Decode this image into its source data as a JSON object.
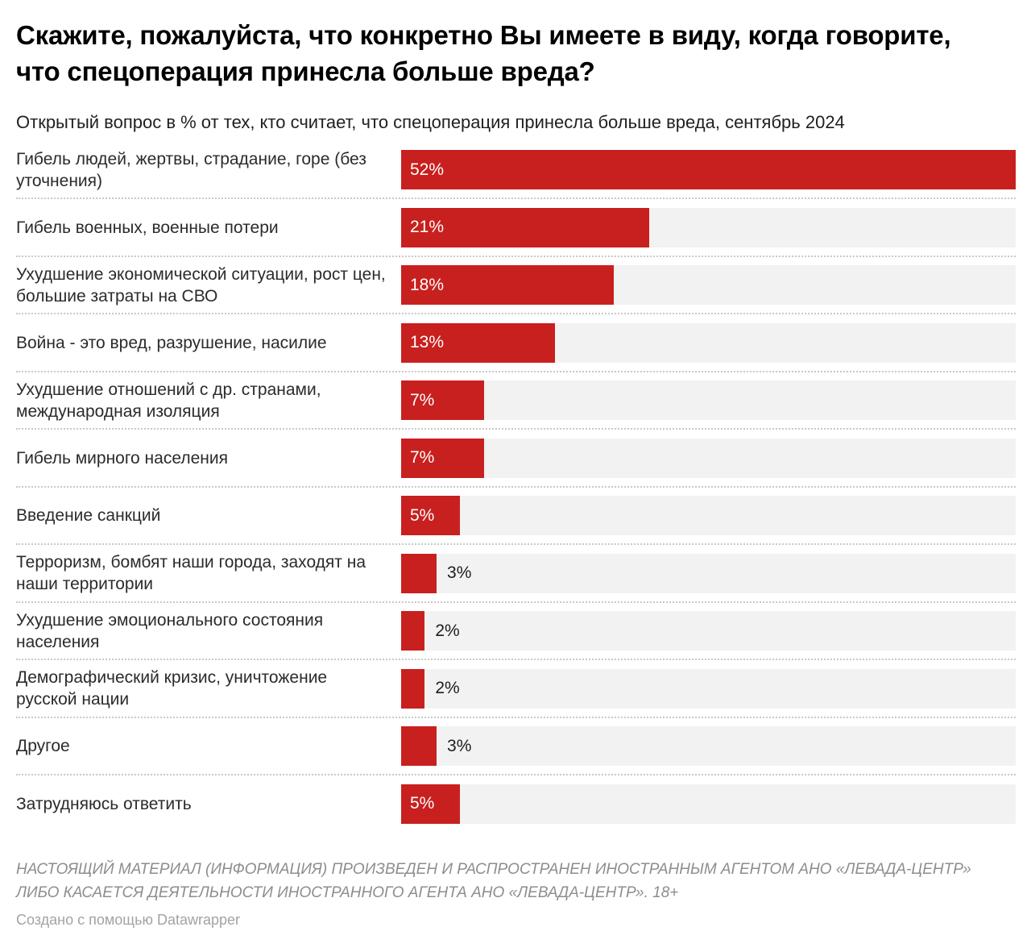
{
  "header": {
    "title": "Скажите, пожалуйста, что конкретно Вы имеете в виду, когда говорите, что спецоперация принесла больше вреда?",
    "subtitle": "Открытый вопрос в % от тех, кто считает, что спецоперация принесла больше вреда, сентябрь 2024"
  },
  "chart_data": {
    "type": "bar",
    "orientation": "horizontal",
    "title": "Скажите, пожалуйста, что конкретно Вы имеете в виду, когда говорите, что спецоперация принесла больше вреда?",
    "subtitle": "Открытый вопрос в % от тех, кто считает, что спецоперация принесла больше вреда, сентябрь 2024",
    "xlim": [
      0,
      52
    ],
    "grid": false,
    "legend": "none",
    "value_suffix": "%",
    "categories": [
      "Гибель людей, жертвы, страдание, горе (без уточнения)",
      "Гибель военных, военные потери",
      "Ухудшение экономической ситуации, рост цен, большие затраты на СВО",
      "Война - это вред, разрушение, насилие",
      "Ухудшение отношений с др. странами, международная изоляция",
      "Гибель мирного населения",
      "Введение санкций",
      "Терроризм, бомбят наши города, заходят на наши территории",
      "Ухудшение эмоционального состояния населения",
      "Демографический кризис, уничтожение русской нации",
      "Другое",
      "Затрудняюсь ответить"
    ],
    "values": [
      52,
      21,
      18,
      13,
      7,
      7,
      5,
      3,
      2,
      2,
      3,
      5
    ],
    "value_labels": [
      "52%",
      "21%",
      "18%",
      "13%",
      "7%",
      "7%",
      "5%",
      "3%",
      "2%",
      "2%",
      "3%",
      "5%"
    ],
    "colors": {
      "bar": "#c8201e",
      "track": "#f2f2f2",
      "value_inside": "#ffffff",
      "value_outside": "#1d1d1d",
      "separator": "#c9c9c9"
    }
  },
  "footer": {
    "disclaimer": "НАСТОЯЩИЙ МАТЕРИАЛ (ИНФОРМАЦИЯ) ПРОИЗВЕДЕН И РАСПРОСТРАНЕН ИНОСТРАННЫМ АГЕНТОМ АНО «ЛЕВАДА-ЦЕНТР» ЛИБО КАСАЕТСЯ ДЕЯТЕЛЬНОСТИ ИНОСТРАННОГО АГЕНТА АНО «ЛЕВАДА-ЦЕНТР». 18+",
    "attribution": "Создано с помощью Datawrapper"
  }
}
